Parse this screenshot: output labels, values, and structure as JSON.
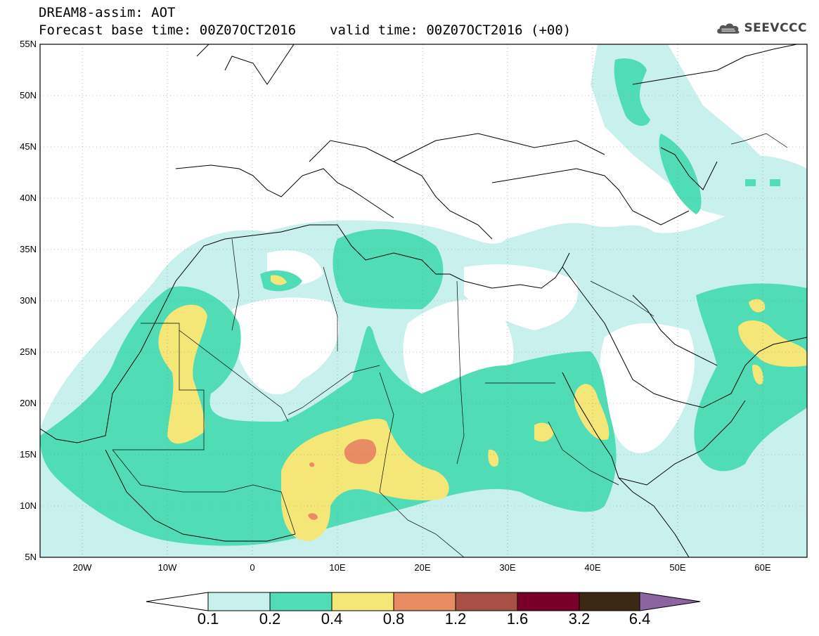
{
  "header": {
    "title": "DREAM8-assim: AOT",
    "base_time": "Forecast base time: 00Z07OCT2016",
    "valid_time": "valid time: 00Z07OCT2016 (+00)",
    "logo_text": "SEEVCCC",
    "logo_icon": "cloud-icon"
  },
  "map": {
    "lat_labels": [
      "55N",
      "50N",
      "45N",
      "40N",
      "35N",
      "30N",
      "25N",
      "20N",
      "15N",
      "10N",
      "5N"
    ],
    "lon_labels": [
      "20W",
      "10W",
      "0",
      "10E",
      "20E",
      "30E",
      "40E",
      "50E",
      "60E"
    ],
    "extent": {
      "lon_min": -25,
      "lon_max": 65,
      "lat_min": 5,
      "lat_max": 55
    }
  },
  "legend": {
    "labels": [
      "0.1",
      "0.2",
      "0.4",
      "0.8",
      "1.2",
      "1.6",
      "3.2",
      "6.4"
    ],
    "colors": [
      "#ffffff",
      "#c8f0ec",
      "#50dcb4",
      "#f5e678",
      "#e88c64",
      "#a85046",
      "#780028",
      "#3c2814",
      "#8c64a0"
    ]
  }
}
